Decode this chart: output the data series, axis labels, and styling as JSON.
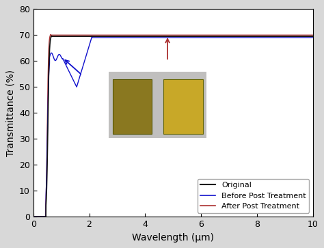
{
  "title": "",
  "xlabel": "Wavelength (μm)",
  "ylabel": "Transmittance (%)",
  "xlim": [
    0,
    10
  ],
  "ylim": [
    0,
    80
  ],
  "yticks": [
    0,
    10,
    20,
    30,
    40,
    50,
    60,
    70,
    80
  ],
  "xticks": [
    0,
    2,
    4,
    6,
    8,
    10
  ],
  "legend_labels": [
    "Original",
    "Before Post Treatment",
    "After Post Treatment"
  ],
  "line_colors": [
    "#111111",
    "#1010cc",
    "#aa3030"
  ],
  "background_color": "#d8d8d8",
  "plot_bg_color": "#ffffff",
  "figsize": [
    4.74,
    3.63
  ],
  "dpi": 100
}
